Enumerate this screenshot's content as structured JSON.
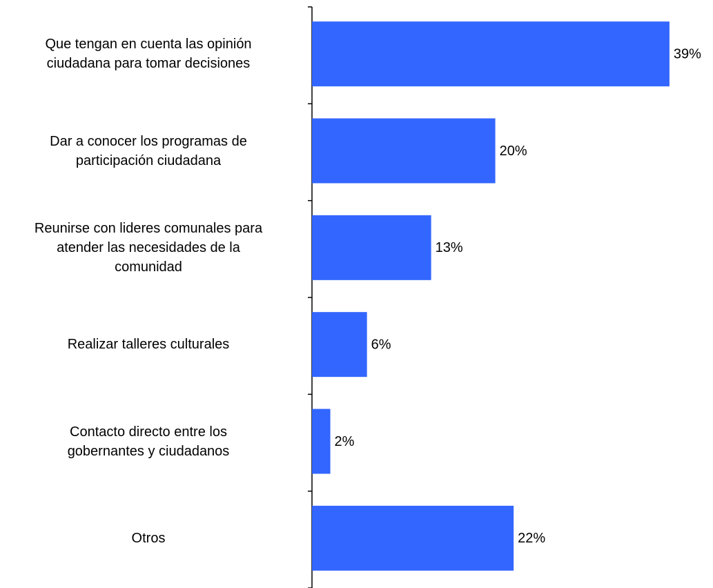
{
  "chart_data": {
    "type": "bar",
    "orientation": "horizontal",
    "categories": [
      "Que tengan en cuenta  las opinión\nciudadana para tomar decisiones",
      "Dar a conocer los programas de\nparticipación ciudadana",
      "Reunirse con lideres comunales para\natender las necesidades de la\ncomunidad",
      "Realizar talleres culturales",
      "Contacto directo entre los\ngobernantes y ciudadanos",
      "Otros"
    ],
    "values": [
      39,
      20,
      13,
      6,
      2,
      22
    ],
    "value_labels": [
      "39%",
      "20%",
      "13%",
      "6%",
      "2%",
      "22%"
    ],
    "color": "#3366ff"
  }
}
